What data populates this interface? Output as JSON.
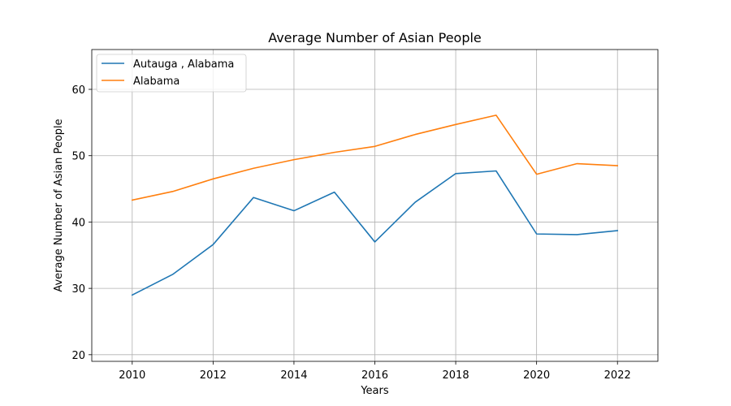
{
  "chart_data": {
    "type": "line",
    "title": "Average Number of Asian People",
    "xlabel": "Years",
    "ylabel": "Average Number of Asian People",
    "x": [
      2010,
      2011,
      2012,
      2013,
      2014,
      2015,
      2016,
      2017,
      2018,
      2019,
      2020,
      2021,
      2022
    ],
    "xlim": [
      2009,
      2023
    ],
    "ylim": [
      19,
      66
    ],
    "xticks": [
      2010,
      2012,
      2014,
      2016,
      2018,
      2020,
      2022
    ],
    "yticks": [
      20,
      30,
      40,
      50,
      60
    ],
    "grid": true,
    "legend_position": "top-left",
    "series": [
      {
        "name": "Autauga , Alabama",
        "color": "#1f77b4",
        "values": [
          29.0,
          32.1,
          36.6,
          43.7,
          41.7,
          44.5,
          37.0,
          43.0,
          47.3,
          47.7,
          38.2,
          38.1,
          38.7
        ]
      },
      {
        "name": "Alabama",
        "color": "#ff7f0e",
        "values": [
          43.3,
          44.6,
          46.5,
          48.1,
          49.4,
          50.5,
          51.4,
          53.2,
          54.7,
          56.1,
          47.2,
          48.8,
          48.5
        ]
      }
    ]
  }
}
